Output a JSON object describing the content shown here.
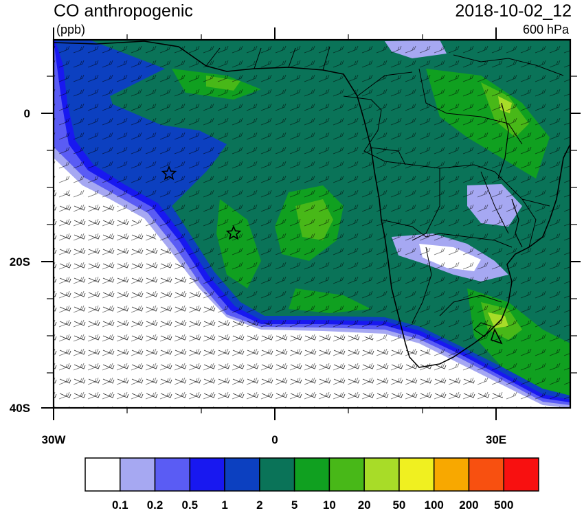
{
  "header": {
    "title": "CO anthropogenic",
    "units": "(ppb)",
    "valid_time": "2018-10-02_12",
    "level": "600 hPa"
  },
  "axes": {
    "x_ticks": [
      "30W",
      "0",
      "30E"
    ],
    "y_ticks": [
      "0",
      "20S",
      "40S"
    ]
  },
  "colorbar": {
    "labels": [
      "0.1",
      "0.2",
      "0.5",
      "1",
      "2",
      "5",
      "10",
      "20",
      "50",
      "100",
      "200",
      "500"
    ],
    "colors": [
      "#ffffff",
      "#a6a8f2",
      "#5a5cf4",
      "#1818f0",
      "#0c40c0",
      "#0a7358",
      "#10a020",
      "#48b818",
      "#a8dc28",
      "#f0f020",
      "#f8a800",
      "#f85010",
      "#f81010"
    ]
  },
  "markers": [
    "star",
    "star"
  ],
  "map_colors": {
    "ocean_clean": "#ffffff",
    "land_outline": "#000000"
  }
}
